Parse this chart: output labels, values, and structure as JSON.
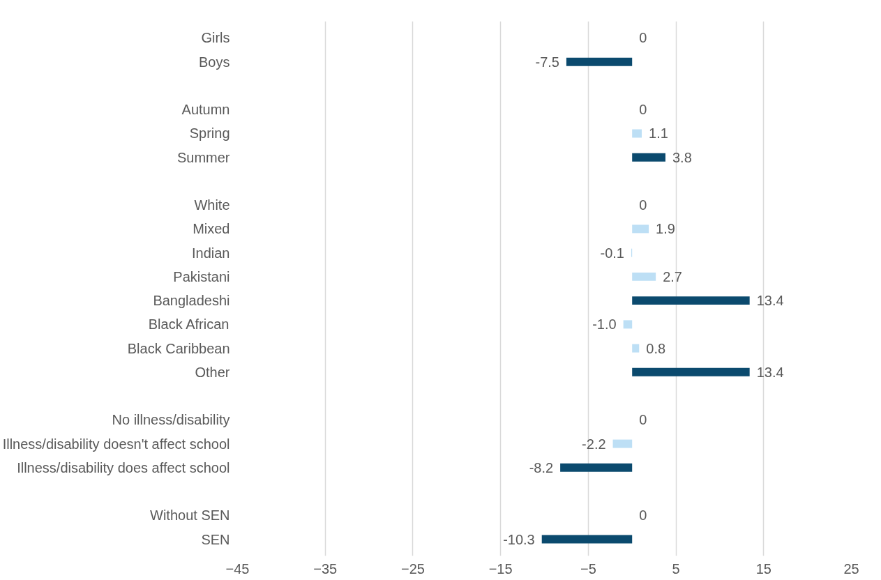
{
  "chart_data": {
    "type": "bar",
    "orientation": "horizontal",
    "categories": [
      "Girls",
      "Boys",
      null,
      "Autumn",
      "Spring",
      "Summer",
      null,
      "White",
      "Mixed",
      "Indian",
      "Pakistani",
      "Bangladeshi",
      "Black African",
      "Black Caribbean",
      "Other",
      null,
      "No illness/disability",
      "Illness/disability doesn't affect school",
      "Illness/disability does affect school",
      null,
      "Without SEN",
      "SEN"
    ],
    "values": [
      0,
      -7.5,
      null,
      0,
      1.1,
      3.8,
      null,
      0,
      1.9,
      -0.1,
      2.7,
      13.4,
      -1.0,
      0.8,
      13.4,
      null,
      0,
      -2.2,
      -8.2,
      null,
      0,
      -10.3
    ],
    "value_labels": [
      "0",
      "-7.5",
      null,
      "0",
      "1.1",
      "3.8",
      null,
      "0",
      "1.9",
      "-0.1",
      "2.7",
      "13.4",
      "-1.0",
      "0.8",
      "13.4",
      null,
      "0",
      "-2.2",
      "-8.2",
      null,
      "0",
      "-10.3"
    ],
    "colors": [
      "#bddff5",
      "#0b4a6e",
      null,
      "#bddff5",
      "#bddff5",
      "#0b4a6e",
      null,
      "#bddff5",
      "#bddff5",
      "#bddff5",
      "#bddff5",
      "#0b4a6e",
      "#bddff5",
      "#bddff5",
      "#0b4a6e",
      null,
      "#bddff5",
      "#bddff5",
      "#0b4a6e",
      null,
      "#bddff5",
      "#0b4a6e"
    ],
    "xlim": [
      -45,
      25
    ],
    "xticks": [
      -45,
      -35,
      -25,
      -15,
      -5,
      5,
      15,
      25
    ],
    "grid": "x"
  }
}
